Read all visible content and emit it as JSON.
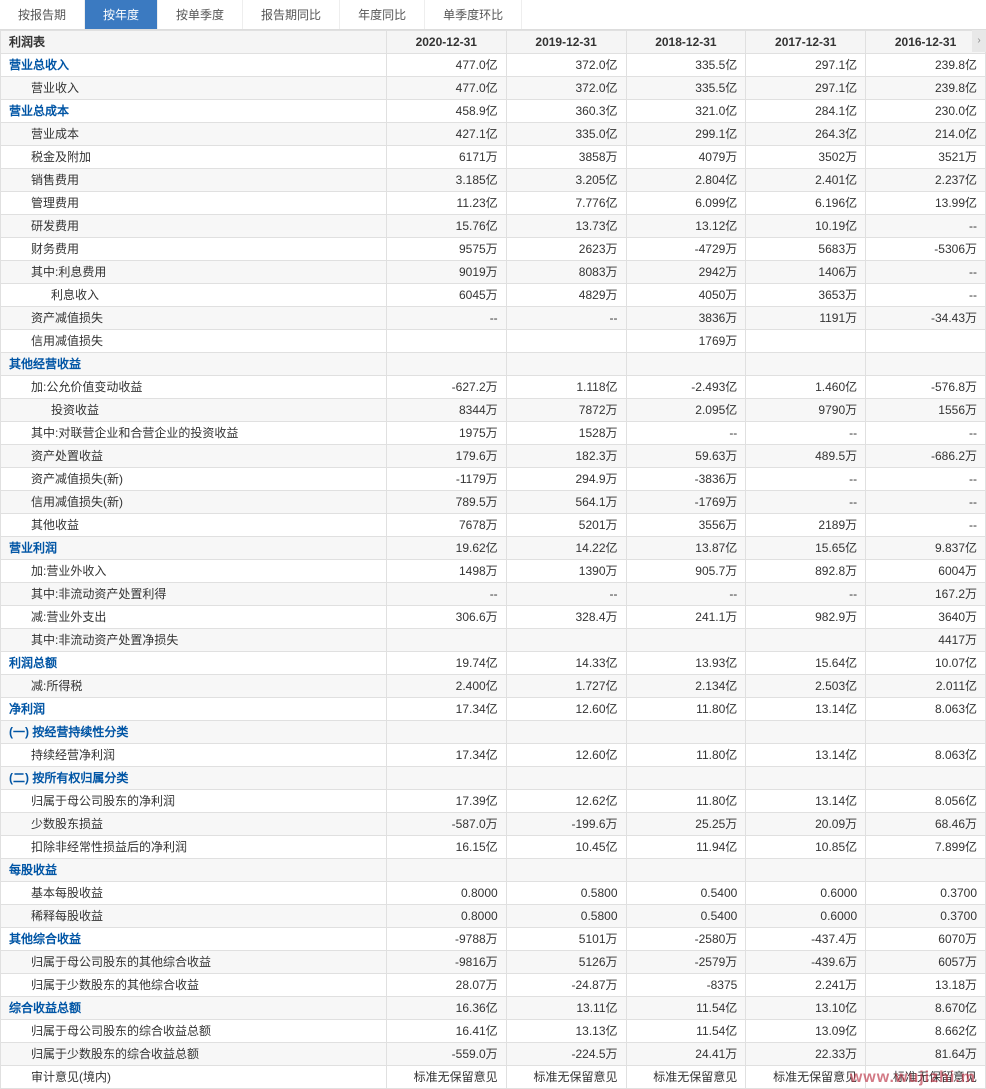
{
  "tabs": [
    {
      "label": "按报告期",
      "active": false
    },
    {
      "label": "按年度",
      "active": true
    },
    {
      "label": "按单季度",
      "active": false
    },
    {
      "label": "报告期同比",
      "active": false
    },
    {
      "label": "年度同比",
      "active": false
    },
    {
      "label": "单季度环比",
      "active": false
    }
  ],
  "header": {
    "label": "利润表",
    "cols": [
      "2020-12-31",
      "2019-12-31",
      "2018-12-31",
      "2017-12-31",
      "2016-12-31"
    ]
  },
  "col_width_label": 380,
  "col_width_val": 118,
  "rows": [
    {
      "cat": true,
      "indent": 0,
      "label": "营业总收入",
      "v": [
        "477.0亿",
        "372.0亿",
        "335.5亿",
        "297.1亿",
        "239.8亿"
      ]
    },
    {
      "indent": 1,
      "label": "营业收入",
      "v": [
        "477.0亿",
        "372.0亿",
        "335.5亿",
        "297.1亿",
        "239.8亿"
      ]
    },
    {
      "cat": true,
      "indent": 0,
      "label": "营业总成本",
      "v": [
        "458.9亿",
        "360.3亿",
        "321.0亿",
        "284.1亿",
        "230.0亿"
      ]
    },
    {
      "indent": 1,
      "label": "营业成本",
      "v": [
        "427.1亿",
        "335.0亿",
        "299.1亿",
        "264.3亿",
        "214.0亿"
      ]
    },
    {
      "indent": 1,
      "label": "税金及附加",
      "v": [
        "6171万",
        "3858万",
        "4079万",
        "3502万",
        "3521万"
      ]
    },
    {
      "indent": 1,
      "label": "销售费用",
      "v": [
        "3.185亿",
        "3.205亿",
        "2.804亿",
        "2.401亿",
        "2.237亿"
      ]
    },
    {
      "indent": 1,
      "label": "管理费用",
      "v": [
        "11.23亿",
        "7.776亿",
        "6.099亿",
        "6.196亿",
        "13.99亿"
      ]
    },
    {
      "indent": 1,
      "label": "研发费用",
      "v": [
        "15.76亿",
        "13.73亿",
        "13.12亿",
        "10.19亿",
        "--"
      ]
    },
    {
      "indent": 1,
      "label": "财务费用",
      "v": [
        "9575万",
        "2623万",
        "-4729万",
        "5683万",
        "-5306万"
      ]
    },
    {
      "indent": 1,
      "label": "其中:利息费用",
      "v": [
        "9019万",
        "8083万",
        "2942万",
        "1406万",
        "--"
      ]
    },
    {
      "indent": 2,
      "label": "利息收入",
      "v": [
        "6045万",
        "4829万",
        "4050万",
        "3653万",
        "--"
      ]
    },
    {
      "indent": 1,
      "label": "资产减值损失",
      "v": [
        "--",
        "--",
        "3836万",
        "1191万",
        "-34.43万"
      ]
    },
    {
      "indent": 1,
      "label": "信用减值损失",
      "v": [
        "",
        "",
        "1769万",
        "",
        ""
      ]
    },
    {
      "cat": true,
      "indent": 0,
      "label": "其他经营收益",
      "v": [
        "",
        "",
        "",
        "",
        ""
      ]
    },
    {
      "indent": 1,
      "label": "加:公允价值变动收益",
      "v": [
        "-627.2万",
        "1.118亿",
        "-2.493亿",
        "1.460亿",
        "-576.8万"
      ]
    },
    {
      "indent": 2,
      "label": "投资收益",
      "v": [
        "8344万",
        "7872万",
        "2.095亿",
        "9790万",
        "1556万"
      ]
    },
    {
      "indent": 1,
      "label": "其中:对联营企业和合营企业的投资收益",
      "v": [
        "1975万",
        "1528万",
        "--",
        "--",
        "--"
      ]
    },
    {
      "indent": 1,
      "label": "资产处置收益",
      "v": [
        "179.6万",
        "182.3万",
        "59.63万",
        "489.5万",
        "-686.2万"
      ]
    },
    {
      "indent": 1,
      "label": "资产减值损失(新)",
      "v": [
        "-1179万",
        "294.9万",
        "-3836万",
        "--",
        "--"
      ]
    },
    {
      "indent": 1,
      "label": "信用减值损失(新)",
      "v": [
        "789.5万",
        "564.1万",
        "-1769万",
        "--",
        "--"
      ]
    },
    {
      "indent": 1,
      "label": "其他收益",
      "v": [
        "7678万",
        "5201万",
        "3556万",
        "2189万",
        "--"
      ]
    },
    {
      "cat": true,
      "indent": 0,
      "label": "营业利润",
      "v": [
        "19.62亿",
        "14.22亿",
        "13.87亿",
        "15.65亿",
        "9.837亿"
      ]
    },
    {
      "indent": 1,
      "label": "加:营业外收入",
      "v": [
        "1498万",
        "1390万",
        "905.7万",
        "892.8万",
        "6004万"
      ]
    },
    {
      "indent": 1,
      "label": "其中:非流动资产处置利得",
      "v": [
        "--",
        "--",
        "--",
        "--",
        "167.2万"
      ]
    },
    {
      "indent": 1,
      "label": "减:营业外支出",
      "v": [
        "306.6万",
        "328.4万",
        "241.1万",
        "982.9万",
        "3640万"
      ]
    },
    {
      "indent": 1,
      "label": "其中:非流动资产处置净损失",
      "v": [
        "",
        "",
        "",
        "",
        "4417万"
      ]
    },
    {
      "cat": true,
      "indent": 0,
      "label": "利润总额",
      "v": [
        "19.74亿",
        "14.33亿",
        "13.93亿",
        "15.64亿",
        "10.07亿"
      ]
    },
    {
      "indent": 1,
      "label": "减:所得税",
      "v": [
        "2.400亿",
        "1.727亿",
        "2.134亿",
        "2.503亿",
        "2.011亿"
      ]
    },
    {
      "cat": true,
      "indent": 0,
      "label": "净利润",
      "v": [
        "17.34亿",
        "12.60亿",
        "11.80亿",
        "13.14亿",
        "8.063亿"
      ]
    },
    {
      "cat": true,
      "indent": 0,
      "label": "(一) 按经营持续性分类",
      "v": [
        "",
        "",
        "",
        "",
        ""
      ]
    },
    {
      "indent": 1,
      "label": "持续经营净利润",
      "v": [
        "17.34亿",
        "12.60亿",
        "11.80亿",
        "13.14亿",
        "8.063亿"
      ]
    },
    {
      "cat": true,
      "indent": 0,
      "label": "(二) 按所有权归属分类",
      "v": [
        "",
        "",
        "",
        "",
        ""
      ]
    },
    {
      "indent": 1,
      "label": "归属于母公司股东的净利润",
      "v": [
        "17.39亿",
        "12.62亿",
        "11.80亿",
        "13.14亿",
        "8.056亿"
      ]
    },
    {
      "indent": 1,
      "label": "少数股东损益",
      "v": [
        "-587.0万",
        "-199.6万",
        "25.25万",
        "20.09万",
        "68.46万"
      ]
    },
    {
      "indent": 1,
      "label": "扣除非经常性损益后的净利润",
      "v": [
        "16.15亿",
        "10.45亿",
        "11.94亿",
        "10.85亿",
        "7.899亿"
      ]
    },
    {
      "cat": true,
      "indent": 0,
      "label": "每股收益",
      "v": [
        "",
        "",
        "",
        "",
        ""
      ]
    },
    {
      "indent": 1,
      "label": "基本每股收益",
      "v": [
        "0.8000",
        "0.5800",
        "0.5400",
        "0.6000",
        "0.3700"
      ]
    },
    {
      "indent": 1,
      "label": "稀释每股收益",
      "v": [
        "0.8000",
        "0.5800",
        "0.5400",
        "0.6000",
        "0.3700"
      ]
    },
    {
      "cat": true,
      "indent": 0,
      "label": "其他综合收益",
      "v": [
        "-9788万",
        "5101万",
        "-2580万",
        "-437.4万",
        "6070万"
      ]
    },
    {
      "indent": 1,
      "label": "归属于母公司股东的其他综合收益",
      "v": [
        "-9816万",
        "5126万",
        "-2579万",
        "-439.6万",
        "6057万"
      ]
    },
    {
      "indent": 1,
      "label": "归属于少数股东的其他综合收益",
      "v": [
        "28.07万",
        "-24.87万",
        "-8375",
        "2.241万",
        "13.18万"
      ]
    },
    {
      "cat": true,
      "indent": 0,
      "label": "综合收益总额",
      "v": [
        "16.36亿",
        "13.11亿",
        "11.54亿",
        "13.10亿",
        "8.670亿"
      ]
    },
    {
      "indent": 1,
      "label": "归属于母公司股东的综合收益总额",
      "v": [
        "16.41亿",
        "13.13亿",
        "11.54亿",
        "13.09亿",
        "8.662亿"
      ]
    },
    {
      "indent": 1,
      "label": "归属于少数股东的综合收益总额",
      "v": [
        "-559.0万",
        "-224.5万",
        "24.41万",
        "22.33万",
        "81.64万"
      ]
    },
    {
      "indent": 1,
      "label": "审计意见(境内)",
      "v": [
        "标准无保留意见",
        "标准无保留意见",
        "标准无保留意见",
        "标准无保留意见",
        "标准无保留意见"
      ]
    }
  ],
  "watermark": "www.wujizhi.m",
  "colors": {
    "tab_active_bg": "#3b7ac1",
    "tab_active_text": "#ffffff",
    "header_bg": "#f5f5f5",
    "border": "#e0e0e0",
    "alt_row": "#f7f7f7",
    "category_text": "#0055a5"
  }
}
